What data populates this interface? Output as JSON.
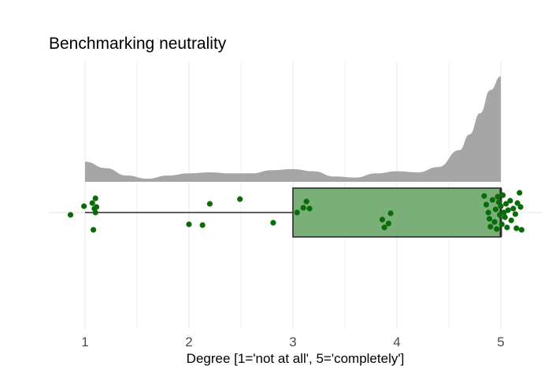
{
  "chart_data": {
    "type": "raincloud",
    "title": "Benchmarking neutrality",
    "xlabel": "Degree [1='not at all', 5='completely']",
    "ylabel": "",
    "xlim": [
      0.65,
      5.4
    ],
    "x_ticks": [
      1,
      2,
      3,
      4,
      5
    ],
    "grid": true,
    "colors": {
      "density_fill": "#a6a6a6",
      "box_fill": "#7aaf77",
      "box_stroke": "#2b2b2b",
      "points": "#0a6b0a",
      "grid": "#ebebeb"
    },
    "boxplot": {
      "min": 1,
      "q1": 3,
      "median": 5,
      "q3": 5,
      "max": 5
    },
    "density": {
      "x": [
        1.0,
        1.2,
        1.4,
        1.6,
        1.8,
        2.0,
        2.2,
        2.4,
        2.6,
        2.8,
        3.0,
        3.2,
        3.4,
        3.6,
        3.8,
        4.0,
        4.2,
        4.4,
        4.6,
        4.7,
        4.8,
        4.9,
        5.0
      ],
      "y": [
        0.19,
        0.13,
        0.06,
        0.03,
        0.06,
        0.08,
        0.09,
        0.08,
        0.08,
        0.11,
        0.12,
        0.1,
        0.05,
        0.04,
        0.08,
        0.1,
        0.09,
        0.14,
        0.3,
        0.45,
        0.65,
        0.87,
        1.0
      ]
    },
    "points": [
      {
        "x": 0.86,
        "j": -0.03
      },
      {
        "x": 0.99,
        "j": 0.08
      },
      {
        "x": 1.07,
        "j": 0.12
      },
      {
        "x": 1.09,
        "j": 0.05
      },
      {
        "x": 1.1,
        "j": 0.18
      },
      {
        "x": 1.11,
        "j": 0.07
      },
      {
        "x": 1.1,
        "j": 0.0
      },
      {
        "x": 1.08,
        "j": -0.22
      },
      {
        "x": 2.0,
        "j": -0.15
      },
      {
        "x": 2.13,
        "j": -0.16
      },
      {
        "x": 2.2,
        "j": 0.11
      },
      {
        "x": 2.49,
        "j": 0.17
      },
      {
        "x": 2.81,
        "j": -0.13
      },
      {
        "x": 3.04,
        "j": 0.0
      },
      {
        "x": 3.1,
        "j": 0.06
      },
      {
        "x": 3.13,
        "j": 0.14
      },
      {
        "x": 3.16,
        "j": 0.05
      },
      {
        "x": 3.86,
        "j": -0.09
      },
      {
        "x": 3.88,
        "j": -0.19
      },
      {
        "x": 3.92,
        "j": -0.14
      },
      {
        "x": 3.94,
        "j": -0.01
      },
      {
        "x": 4.84,
        "j": 0.21
      },
      {
        "x": 4.86,
        "j": 0.1
      },
      {
        "x": 4.88,
        "j": 0.0
      },
      {
        "x": 4.89,
        "j": -0.08
      },
      {
        "x": 4.9,
        "j": -0.18
      },
      {
        "x": 4.92,
        "j": 0.16
      },
      {
        "x": 4.94,
        "j": -0.12
      },
      {
        "x": 4.95,
        "j": 0.04
      },
      {
        "x": 4.96,
        "j": -0.21
      },
      {
        "x": 4.97,
        "j": 0.2
      },
      {
        "x": 4.98,
        "j": 0.13
      },
      {
        "x": 4.99,
        "j": -0.03
      },
      {
        "x": 5.0,
        "j": 0.08
      },
      {
        "x": 5.01,
        "j": -0.15
      },
      {
        "x": 5.02,
        "j": 0.22
      },
      {
        "x": 5.03,
        "j": 0.0
      },
      {
        "x": 5.04,
        "j": -0.06
      },
      {
        "x": 5.05,
        "j": 0.11
      },
      {
        "x": 5.06,
        "j": -0.19
      },
      {
        "x": 5.07,
        "j": 0.03
      },
      {
        "x": 5.09,
        "j": 0.15
      },
      {
        "x": 5.1,
        "j": -0.1
      },
      {
        "x": 5.12,
        "j": 0.05
      },
      {
        "x": 5.14,
        "j": -0.02
      },
      {
        "x": 5.15,
        "j": -0.2
      },
      {
        "x": 5.16,
        "j": 0.12
      },
      {
        "x": 5.18,
        "j": 0.25
      },
      {
        "x": 5.19,
        "j": 0.07
      },
      {
        "x": 5.2,
        "j": -0.22
      }
    ]
  }
}
